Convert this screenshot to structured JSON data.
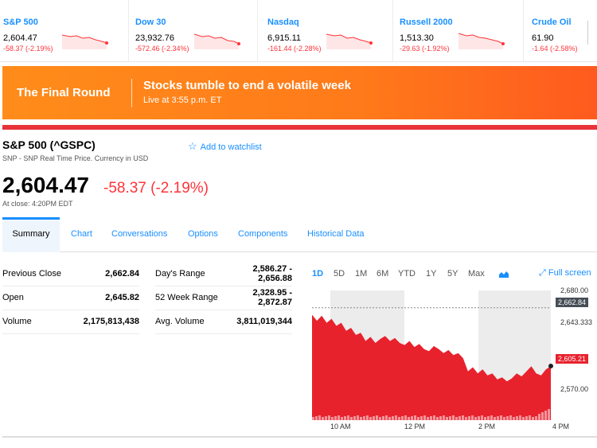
{
  "ticker": [
    {
      "name": "S&P 500",
      "price": "2,604.47",
      "change": "-58.37 (-2.19%)"
    },
    {
      "name": "Dow 30",
      "price": "23,932.76",
      "change": "-572.46 (-2.34%)"
    },
    {
      "name": "Nasdaq",
      "price": "6,915.11",
      "change": "-161.44 (-2.28%)"
    },
    {
      "name": "Russell 2000",
      "price": "1,513.30",
      "change": "-29.63 (-1.92%)"
    },
    {
      "name": "Crude Oil",
      "price": "61.90",
      "change": "-1.64 (-2.58%)"
    }
  ],
  "banner": {
    "show": "The Final Round",
    "headline": "Stocks tumble to end a volatile week",
    "subline": "Live at 3:55 p.m. ET"
  },
  "quote": {
    "title": "S&P 500 (^GSPC)",
    "subtitle": "SNP - SNP Real Time Price. Currency in USD",
    "watchlist_label": "Add to watchlist",
    "price": "2,604.47",
    "change": "-58.37 (-2.19%)",
    "close_text": "At close: 4:20PM EDT"
  },
  "tabs": [
    "Summary",
    "Chart",
    "Conversations",
    "Options",
    "Components",
    "Historical Data"
  ],
  "stats": {
    "left": [
      {
        "label": "Previous Close",
        "value": "2,662.84"
      },
      {
        "label": "Open",
        "value": "2,645.82"
      },
      {
        "label": "Volume",
        "value": "2,175,813,438"
      }
    ],
    "right": [
      {
        "label": "Day's Range",
        "value_line1": "2,586.27 -",
        "value_line2": "2,656.88"
      },
      {
        "label": "52 Week Range",
        "value_line1": "2,328.95 -",
        "value_line2": "2,872.87"
      },
      {
        "label": "Avg. Volume",
        "value_line1": "3,811,019,344",
        "value_line2": ""
      }
    ]
  },
  "chart": {
    "ranges": [
      "1D",
      "5D",
      "1M",
      "6M",
      "YTD",
      "1Y",
      "5Y",
      "Max"
    ],
    "active_range": "1D",
    "fullscreen_label": "Full screen",
    "colors": {
      "fill": "#e8222d",
      "accent": "#188fff",
      "prev_close_flag": "#464e56"
    }
  },
  "chart_data": {
    "type": "area",
    "x_ticks": [
      "10 AM",
      "12 PM",
      "2 PM",
      "4 PM"
    ],
    "y_ticks": [
      "2,680.00",
      "2,643.333",
      "2,570.00"
    ],
    "ylim": [
      2551.67,
      2680.0
    ],
    "prev_close": {
      "value": 2662.84,
      "label": "2,662.84"
    },
    "last": {
      "value": 2605.21,
      "label": "2,605.21"
    },
    "series": [
      {
        "values": [
          2656,
          2650,
          2655,
          2648,
          2652,
          2645,
          2648,
          2640,
          2643,
          2636,
          2638,
          2630,
          2634,
          2628,
          2632,
          2635,
          2630,
          2633,
          2628,
          2626,
          2630,
          2624,
          2627,
          2622,
          2620,
          2625,
          2622,
          2618,
          2621,
          2616,
          2618,
          2613,
          2600,
          2604,
          2598,
          2602,
          2596,
          2598,
          2592,
          2594,
          2590,
          2593,
          2598,
          2595,
          2600,
          2605,
          2598,
          2596,
          2602,
          2605
        ]
      }
    ]
  }
}
